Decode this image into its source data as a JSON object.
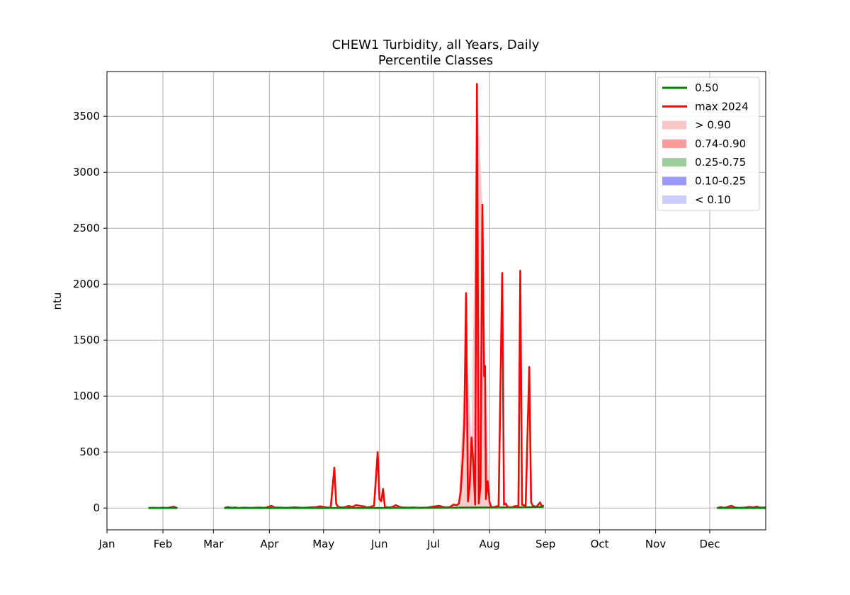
{
  "chart_data": {
    "type": "line",
    "title": "CHEW1 Turbidity, all Years, Daily",
    "subtitle": "Percentile Classes",
    "xlabel": "",
    "ylabel": "ntu",
    "xlim": [
      0,
      365
    ],
    "ylim": [
      -195,
      3900
    ],
    "x_ticks": [
      {
        "day": 0,
        "label": "Jan"
      },
      {
        "day": 31,
        "label": "Feb"
      },
      {
        "day": 59,
        "label": "Mar"
      },
      {
        "day": 90,
        "label": "Apr"
      },
      {
        "day": 120,
        "label": "May"
      },
      {
        "day": 151,
        "label": "Jun"
      },
      {
        "day": 181,
        "label": "Jul"
      },
      {
        "day": 212,
        "label": "Aug"
      },
      {
        "day": 243,
        "label": "Sep"
      },
      {
        "day": 273,
        "label": "Oct"
      },
      {
        "day": 304,
        "label": "Nov"
      },
      {
        "day": 334,
        "label": "Dec"
      }
    ],
    "y_ticks": [
      0,
      500,
      1000,
      1500,
      2000,
      2500,
      3000,
      3500
    ],
    "grid": true,
    "legend_position": "top-right",
    "legend": [
      {
        "label": "0.50",
        "kind": "line",
        "color": "#008000"
      },
      {
        "label": "max 2024",
        "kind": "line",
        "color": "#ff0000"
      },
      {
        "label": "> 0.90",
        "kind": "band",
        "color": "#f7c6c6"
      },
      {
        "label": "0.74-0.90",
        "kind": "band",
        "color": "#ff9999"
      },
      {
        "label": "0.25-0.75",
        "kind": "band",
        "color": "#9ccc9c"
      },
      {
        "label": "0.10-0.25",
        "kind": "band",
        "color": "#9999ff"
      },
      {
        "label": "< 0.10",
        "kind": "band",
        "color": "#ccccff"
      }
    ],
    "series": [
      {
        "name": "max 2024",
        "color": "#ff0000",
        "segments": [
          [
            [
              23,
              0
            ],
            [
              26,
              2
            ],
            [
              29,
              0
            ],
            [
              31,
              3
            ],
            [
              33,
              0
            ],
            [
              35,
              5
            ],
            [
              37,
              12
            ],
            [
              39,
              0
            ]
          ],
          [
            [
              65,
              0
            ],
            [
              67,
              8
            ],
            [
              69,
              2
            ],
            [
              71,
              5
            ],
            [
              73,
              0
            ],
            [
              76,
              3
            ],
            [
              80,
              1
            ],
            [
              84,
              4
            ],
            [
              88,
              2
            ],
            [
              91,
              20
            ],
            [
              93,
              5
            ],
            [
              96,
              3
            ],
            [
              100,
              2
            ],
            [
              104,
              6
            ],
            [
              108,
              2
            ],
            [
              112,
              5
            ],
            [
              116,
              8
            ],
            [
              118,
              15
            ],
            [
              120,
              10
            ],
            [
              122,
              5
            ],
            [
              124,
              3
            ],
            [
              126,
              360
            ],
            [
              127,
              40
            ],
            [
              128,
              10
            ],
            [
              130,
              5
            ],
            [
              132,
              8
            ],
            [
              134,
              18
            ],
            [
              136,
              10
            ],
            [
              138,
              25
            ],
            [
              140,
              20
            ],
            [
              142,
              15
            ],
            [
              144,
              5
            ],
            [
              146,
              10
            ],
            [
              148,
              20
            ],
            [
              150,
              500
            ],
            [
              151,
              80
            ],
            [
              152,
              60
            ],
            [
              153,
              170
            ],
            [
              154,
              10
            ],
            [
              156,
              5
            ],
            [
              158,
              8
            ],
            [
              160,
              25
            ],
            [
              162,
              10
            ],
            [
              164,
              5
            ],
            [
              167,
              3
            ],
            [
              170,
              5
            ],
            [
              174,
              2
            ],
            [
              178,
              5
            ],
            [
              182,
              15
            ],
            [
              184,
              20
            ],
            [
              186,
              10
            ],
            [
              188,
              5
            ],
            [
              190,
              8
            ],
            [
              192,
              30
            ],
            [
              194,
              25
            ],
            [
              195,
              40
            ],
            [
              196,
              150
            ],
            [
              197,
              400
            ],
            [
              198,
              750
            ],
            [
              199,
              1920
            ],
            [
              200,
              60
            ],
            [
              201,
              200
            ],
            [
              202,
              630
            ],
            [
              203,
              400
            ],
            [
              204,
              30
            ],
            [
              205,
              3790
            ],
            [
              206,
              40
            ],
            [
              207,
              200
            ],
            [
              208,
              2710
            ],
            [
              209,
              1180
            ],
            [
              209.5,
              1270
            ],
            [
              210,
              80
            ],
            [
              211,
              240
            ],
            [
              212,
              50
            ],
            [
              213,
              5
            ],
            [
              215,
              10
            ],
            [
              217,
              20
            ],
            [
              219,
              2100
            ],
            [
              220,
              30
            ],
            [
              221,
              40
            ],
            [
              222,
              10
            ],
            [
              224,
              5
            ],
            [
              226,
              15
            ],
            [
              228,
              20
            ],
            [
              229,
              2120
            ],
            [
              230,
              30
            ],
            [
              232,
              20
            ],
            [
              234,
              1260
            ],
            [
              235,
              50
            ],
            [
              236,
              20
            ],
            [
              238,
              10
            ],
            [
              240,
              50
            ],
            [
              241,
              10
            ],
            [
              242,
              25
            ]
          ],
          [
            [
              338,
              0
            ],
            [
              340,
              8
            ],
            [
              342,
              2
            ],
            [
              344,
              10
            ],
            [
              346,
              20
            ],
            [
              348,
              5
            ],
            [
              350,
              2
            ],
            [
              353,
              3
            ],
            [
              356,
              10
            ],
            [
              358,
              5
            ],
            [
              360,
              12
            ],
            [
              362,
              3
            ],
            [
              365,
              5
            ]
          ]
        ]
      },
      {
        "name": "0.50",
        "color": "#008000",
        "segments": [
          [
            [
              23,
              0
            ],
            [
              39,
              0
            ]
          ],
          [
            [
              65,
              0
            ],
            [
              150,
              0
            ],
            [
              180,
              2
            ],
            [
              200,
              4
            ],
            [
              215,
              5
            ],
            [
              230,
              6
            ],
            [
              242,
              10
            ]
          ],
          [
            [
              338,
              0
            ],
            [
              365,
              0
            ]
          ]
        ]
      }
    ],
    "bands": [
      {
        "name": "> 0.90",
        "color": "#f7c6c6",
        "lower": [
          [
            195,
            0
          ],
          [
            199,
            0
          ],
          [
            205,
            0
          ],
          [
            209,
            0
          ],
          [
            212,
            0
          ]
        ],
        "upper": [
          [
            195,
            100
          ],
          [
            199,
            1500
          ],
          [
            202,
            600
          ],
          [
            205,
            3790
          ],
          [
            208,
            2710
          ],
          [
            209,
            1270
          ],
          [
            212,
            150
          ]
        ]
      }
    ]
  }
}
